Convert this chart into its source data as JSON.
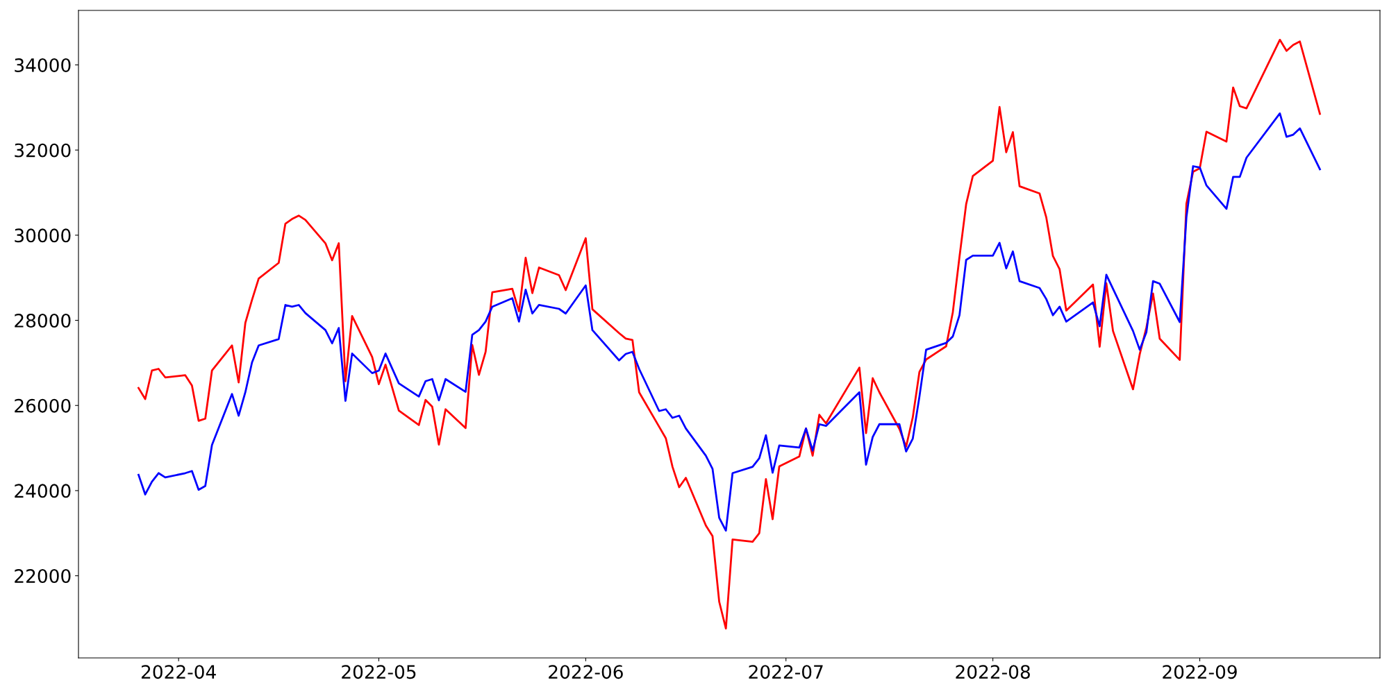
{
  "chart_data": {
    "type": "line",
    "x": [
      "2022-03-26",
      "2022-03-27",
      "2022-03-28",
      "2022-03-29",
      "2022-03-30",
      "2022-04-02",
      "2022-04-03",
      "2022-04-04",
      "2022-04-05",
      "2022-04-06",
      "2022-04-09",
      "2022-04-10",
      "2022-04-11",
      "2022-04-12",
      "2022-04-13",
      "2022-04-16",
      "2022-04-17",
      "2022-04-18",
      "2022-04-19",
      "2022-04-20",
      "2022-04-23",
      "2022-04-24",
      "2022-04-25",
      "2022-04-26",
      "2022-04-27",
      "2022-04-30",
      "2022-05-01",
      "2022-05-02",
      "2022-05-04",
      "2022-05-07",
      "2022-05-08",
      "2022-05-09",
      "2022-05-10",
      "2022-05-11",
      "2022-05-14",
      "2022-05-15",
      "2022-05-16",
      "2022-05-17",
      "2022-05-18",
      "2022-05-21",
      "2022-05-22",
      "2022-05-23",
      "2022-05-24",
      "2022-05-25",
      "2022-05-28",
      "2022-05-29",
      "2022-06-01",
      "2022-06-02",
      "2022-06-06",
      "2022-06-07",
      "2022-06-08",
      "2022-06-09",
      "2022-06-12",
      "2022-06-13",
      "2022-06-14",
      "2022-06-15",
      "2022-06-16",
      "2022-06-19",
      "2022-06-20",
      "2022-06-21",
      "2022-06-22",
      "2022-06-23",
      "2022-06-26",
      "2022-06-27",
      "2022-06-28",
      "2022-06-29",
      "2022-06-30",
      "2022-07-03",
      "2022-07-04",
      "2022-07-05",
      "2022-07-06",
      "2022-07-07",
      "2022-07-12",
      "2022-07-13",
      "2022-07-14",
      "2022-07-15",
      "2022-07-18",
      "2022-07-19",
      "2022-07-20",
      "2022-07-21",
      "2022-07-22",
      "2022-07-25",
      "2022-07-26",
      "2022-07-27",
      "2022-07-28",
      "2022-07-29",
      "2022-08-01",
      "2022-08-02",
      "2022-08-03",
      "2022-08-04",
      "2022-08-05",
      "2022-08-08",
      "2022-08-09",
      "2022-08-10",
      "2022-08-11",
      "2022-08-12",
      "2022-08-16",
      "2022-08-17",
      "2022-08-18",
      "2022-08-19",
      "2022-08-22",
      "2022-08-23",
      "2022-08-24",
      "2022-08-25",
      "2022-08-26",
      "2022-08-29",
      "2022-08-30",
      "2022-08-31",
      "2022-09-01",
      "2022-09-02",
      "2022-09-05",
      "2022-09-06",
      "2022-09-07",
      "2022-09-08",
      "2022-09-13",
      "2022-09-14",
      "2022-09-15",
      "2022-09-16",
      "2022-09-19"
    ],
    "series": [
      {
        "color": "#ff0000",
        "values": [
          26410,
          26150,
          26820,
          26860,
          26660,
          26710,
          26470,
          25640,
          25690,
          26820,
          27410,
          26540,
          27940,
          28480,
          28980,
          29350,
          30270,
          30380,
          30460,
          30360,
          29810,
          29410,
          29810,
          26570,
          28100,
          27140,
          26500,
          26960,
          25880,
          25540,
          26130,
          25970,
          25080,
          25910,
          25470,
          27420,
          26720,
          27260,
          28660,
          28740,
          28210,
          29470,
          28640,
          29240,
          29060,
          28710,
          29930,
          28260,
          27700,
          27570,
          27540,
          26310,
          25500,
          25230,
          24560,
          24080,
          24300,
          23180,
          22930,
          21390,
          20760,
          22850,
          22800,
          23000,
          24270,
          23330,
          24570,
          24800,
          25460,
          24820,
          25780,
          25580,
          26890,
          25350,
          26640,
          26310,
          25450,
          25030,
          25720,
          26790,
          27080,
          27390,
          28190,
          29490,
          30730,
          31390,
          31750,
          33010,
          31950,
          32420,
          31150,
          30980,
          30420,
          29510,
          29200,
          28230,
          28840,
          27380,
          28870,
          27750,
          26380,
          27200,
          27830,
          28630,
          27570,
          27070,
          30740,
          31490,
          31570,
          32430,
          32200,
          33470,
          33030,
          32980,
          34590,
          34330,
          34470,
          34550,
          32850
        ]
      },
      {
        "color": "#0000ff",
        "values": [
          24370,
          23910,
          24210,
          24410,
          24310,
          24410,
          24460,
          24020,
          24110,
          25070,
          26270,
          25760,
          26310,
          27010,
          27410,
          27560,
          28360,
          28320,
          28360,
          28170,
          27770,
          27460,
          27820,
          26110,
          27220,
          26760,
          26820,
          27220,
          26520,
          26210,
          26570,
          26620,
          26120,
          26620,
          26320,
          27660,
          27770,
          27970,
          28320,
          28520,
          27970,
          28720,
          28160,
          28360,
          28270,
          28160,
          28820,
          27770,
          27060,
          27210,
          27260,
          26860,
          25870,
          25910,
          25710,
          25760,
          25460,
          24820,
          24510,
          23360,
          23060,
          24410,
          24560,
          24760,
          25300,
          24420,
          25060,
          25010,
          25460,
          24940,
          25560,
          25520,
          26310,
          24610,
          25260,
          25560,
          25560,
          24920,
          25220,
          26210,
          27310,
          27470,
          27620,
          28120,
          29420,
          29520,
          29520,
          29820,
          29220,
          29620,
          28920,
          28760,
          28500,
          28120,
          28320,
          27970,
          28420,
          27860,
          29070,
          28740,
          27750,
          27310,
          27720,
          28920,
          28860,
          27960,
          30420,
          31620,
          31590,
          31170,
          30620,
          31370,
          31370,
          31820,
          32860,
          32310,
          32360,
          32510,
          31550
        ]
      }
    ],
    "xlim": [
      "2022-03-17",
      "2022-09-28"
    ],
    "xticks": [
      {
        "value": "2022-04-01",
        "label": "2022-04"
      },
      {
        "value": "2022-05-01",
        "label": "2022-05"
      },
      {
        "value": "2022-06-01",
        "label": "2022-06"
      },
      {
        "value": "2022-07-01",
        "label": "2022-07"
      },
      {
        "value": "2022-08-01",
        "label": "2022-08"
      },
      {
        "value": "2022-09-01",
        "label": "2022-09"
      }
    ],
    "ylim": [
      20070,
      35280
    ],
    "yticks": [
      22000,
      24000,
      26000,
      28000,
      30000,
      32000,
      34000
    ],
    "grid": false,
    "marker": "none",
    "line_style": "solid"
  }
}
